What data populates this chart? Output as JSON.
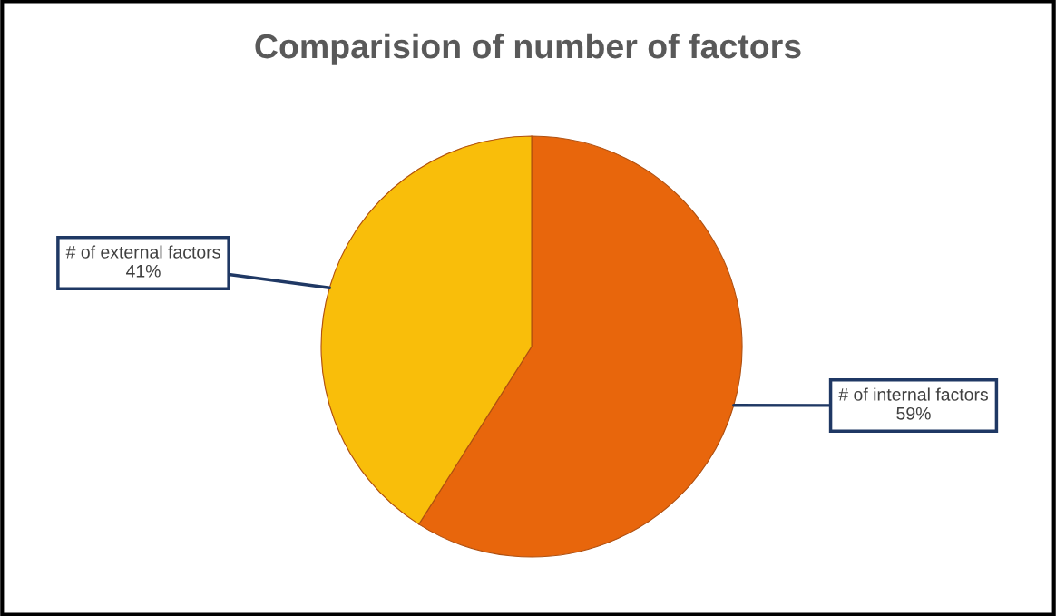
{
  "chart_data": {
    "type": "pie",
    "title": "Comparision of number of factors",
    "categories": [
      "# of internal factors",
      "# of external factors"
    ],
    "values": [
      59,
      41
    ],
    "value_labels": [
      "59%",
      "41%"
    ],
    "colors": [
      "#e8660c",
      "#f9be0a"
    ],
    "legend": false
  }
}
